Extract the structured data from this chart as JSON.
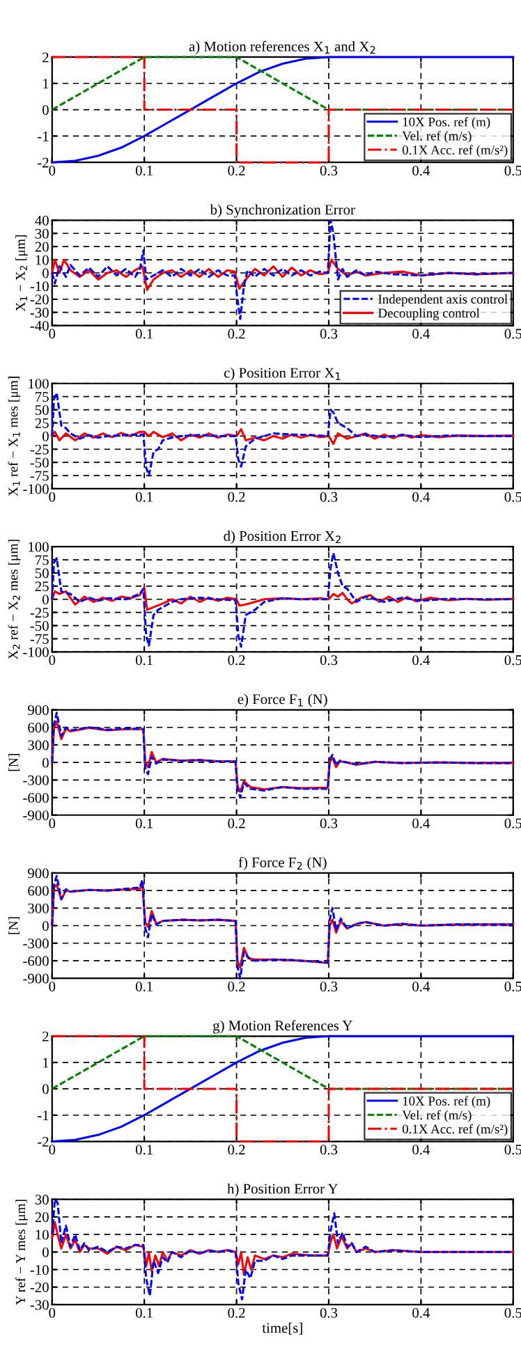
{
  "chart_data": [
    {
      "type": "line",
      "title": "a) Motion references X$_{1}$ and X$_{2}$",
      "xlim": [
        0,
        0.5
      ],
      "xticks": [
        0,
        0.1,
        0.2,
        0.3,
        0.4,
        0.5
      ],
      "ylim": [
        -2,
        2
      ],
      "yticks": [
        -2,
        -1,
        0,
        1,
        2
      ],
      "grid": true,
      "legend": "bottom right",
      "series": [
        {
          "name": "10X Pos. ref (m)",
          "color": "#0000ff",
          "line_style": "solid",
          "x": [
            0,
            0.025,
            0.05,
            0.075,
            0.1,
            0.125,
            0.15,
            0.175,
            0.2,
            0.225,
            0.25,
            0.275,
            0.3,
            0.5
          ],
          "values": [
            -2,
            -1.94,
            -1.75,
            -1.44,
            -1,
            -0.5,
            0,
            0.5,
            1,
            1.44,
            1.75,
            1.94,
            2,
            2
          ]
        },
        {
          "name": "Vel. ref (m/s)",
          "color": "#008000",
          "line_style": "dashed",
          "x": [
            0,
            0.1,
            0.2,
            0.3,
            0.5
          ],
          "values": [
            0,
            2,
            2,
            0,
            0
          ]
        },
        {
          "name": "0.1X Acc. ref (m/s²)",
          "color": "#ff0000",
          "line_style": "dotted",
          "x": [
            0,
            0.1,
            0.1,
            0.2,
            0.2,
            0.3,
            0.3,
            0.5
          ],
          "values": [
            2,
            2,
            0,
            0,
            -2,
            -2,
            0,
            0
          ]
        }
      ]
    },
    {
      "type": "line",
      "title": "b) Synchronization Error",
      "ylabel": "X$_{1}$ − X$_{2}$ [μm]",
      "xlim": [
        0,
        0.5
      ],
      "xticks": [
        0,
        0.1,
        0.2,
        0.3,
        0.4,
        0.5
      ],
      "ylim": [
        -40,
        40
      ],
      "yticks": [
        -40,
        -30,
        -20,
        -10,
        0,
        10,
        20,
        30,
        40
      ],
      "grid": true,
      "legend": "bottom right",
      "series": [
        {
          "name": "Independent axis control",
          "color": "#0000ff",
          "line_style": "dashed",
          "x": [
            0,
            0.003,
            0.008,
            0.015,
            0.02,
            0.03,
            0.04,
            0.05,
            0.06,
            0.07,
            0.08,
            0.09,
            0.095,
            0.099,
            0.102,
            0.11,
            0.12,
            0.13,
            0.14,
            0.15,
            0.16,
            0.17,
            0.18,
            0.19,
            0.198,
            0.201,
            0.204,
            0.208,
            0.212,
            0.22,
            0.23,
            0.24,
            0.25,
            0.26,
            0.27,
            0.28,
            0.29,
            0.299,
            0.302,
            0.305,
            0.31,
            0.315,
            0.32,
            0.33,
            0.34,
            0.35,
            0.37,
            0.4,
            0.43,
            0.46,
            0.5
          ],
          "values": [
            0,
            -8,
            5,
            -3,
            6,
            -2,
            4,
            -3,
            5,
            -2,
            3,
            -3,
            2,
            17,
            -5,
            -2,
            2,
            -3,
            3,
            -2,
            3,
            -3,
            2,
            -2,
            -2,
            -20,
            -35,
            -10,
            2,
            -3,
            3,
            -2,
            3,
            -2,
            2,
            -2,
            1,
            0,
            40,
            30,
            -5,
            3,
            -3,
            2,
            -2,
            1,
            -1,
            -2,
            0,
            -1,
            0
          ]
        },
        {
          "name": "Decoupling control",
          "color": "#ff0000",
          "line_style": "solid",
          "x": [
            0,
            0.003,
            0.008,
            0.013,
            0.02,
            0.03,
            0.04,
            0.05,
            0.06,
            0.07,
            0.08,
            0.09,
            0.098,
            0.103,
            0.11,
            0.12,
            0.13,
            0.14,
            0.15,
            0.16,
            0.17,
            0.18,
            0.19,
            0.198,
            0.203,
            0.21,
            0.22,
            0.23,
            0.24,
            0.25,
            0.26,
            0.27,
            0.28,
            0.29,
            0.299,
            0.303,
            0.31,
            0.32,
            0.33,
            0.34,
            0.36,
            0.38,
            0.4,
            0.43,
            0.46,
            0.5
          ],
          "values": [
            0,
            10,
            0,
            10,
            2,
            -3,
            2,
            -5,
            0,
            2,
            -3,
            2,
            5,
            -13,
            -5,
            0,
            2,
            -3,
            2,
            -3,
            3,
            -3,
            2,
            1,
            -12,
            -5,
            3,
            -2,
            5,
            -3,
            4,
            -2,
            2,
            -1,
            0,
            10,
            3,
            -2,
            1,
            -2,
            0,
            1,
            -2,
            0,
            -1,
            0
          ]
        }
      ]
    },
    {
      "type": "line",
      "title": "c) Position Error X$_{1}$",
      "ylabel": "X$_{1}$ ref − X$_{1}$ mes [μm]",
      "xlim": [
        0,
        0.5
      ],
      "xticks": [
        0,
        0.1,
        0.2,
        0.3,
        0.4,
        0.5
      ],
      "ylim": [
        -100,
        100
      ],
      "yticks": [
        -100,
        -75,
        -50,
        -25,
        0,
        25,
        50,
        75,
        100
      ],
      "grid": true,
      "series": [
        {
          "color": "#0000ff",
          "line_style": "dashed",
          "x": [
            0,
            0.002,
            0.005,
            0.01,
            0.015,
            0.02,
            0.03,
            0.04,
            0.05,
            0.06,
            0.08,
            0.099,
            0.102,
            0.105,
            0.11,
            0.115,
            0.12,
            0.13,
            0.14,
            0.16,
            0.18,
            0.199,
            0.202,
            0.205,
            0.21,
            0.215,
            0.22,
            0.24,
            0.26,
            0.28,
            0.299,
            0.302,
            0.305,
            0.31,
            0.32,
            0.33,
            0.34,
            0.36,
            0.38,
            0.4,
            0.43,
            0.46,
            0.5
          ],
          "values": [
            0,
            70,
            82,
            20,
            15,
            5,
            -5,
            2,
            -3,
            0,
            2,
            3,
            -60,
            -75,
            -30,
            -25,
            -8,
            -3,
            0,
            2,
            0,
            0,
            -45,
            -58,
            -20,
            -12,
            -5,
            5,
            3,
            2,
            0,
            50,
            45,
            25,
            15,
            0,
            3,
            -2,
            2,
            -2,
            1,
            0,
            0
          ]
        },
        {
          "color": "#ff0000",
          "line_style": "solid",
          "x": [
            0,
            0.003,
            0.008,
            0.015,
            0.025,
            0.035,
            0.045,
            0.055,
            0.065,
            0.075,
            0.085,
            0.095,
            0.1,
            0.105,
            0.11,
            0.12,
            0.13,
            0.14,
            0.15,
            0.16,
            0.17,
            0.18,
            0.19,
            0.2,
            0.205,
            0.21,
            0.22,
            0.23,
            0.24,
            0.25,
            0.26,
            0.27,
            0.28,
            0.29,
            0.3,
            0.305,
            0.31,
            0.32,
            0.33,
            0.34,
            0.35,
            0.36,
            0.37,
            0.38,
            0.39,
            0.4,
            0.42,
            0.44,
            0.47,
            0.5
          ],
          "values": [
            0,
            8,
            -8,
            5,
            -8,
            5,
            -3,
            5,
            -2,
            6,
            0,
            8,
            8,
            0,
            8,
            -2,
            5,
            -8,
            3,
            -3,
            5,
            -3,
            3,
            0,
            13,
            -8,
            -3,
            -8,
            0,
            -5,
            3,
            -3,
            2,
            -2,
            0,
            -15,
            5,
            -5,
            0,
            5,
            -5,
            3,
            -4,
            3,
            -3,
            2,
            -2,
            1,
            0,
            1
          ]
        }
      ]
    },
    {
      "type": "line",
      "title": "d) Position Error X$_{2}$",
      "ylabel": "X$_{2}$ ref − X$_{2}$ mes [μm]",
      "xlim": [
        0,
        0.5
      ],
      "xticks": [
        0,
        0.1,
        0.2,
        0.3,
        0.4,
        0.5
      ],
      "ylim": [
        -100,
        100
      ],
      "yticks": [
        -100,
        -75,
        -50,
        -25,
        0,
        25,
        50,
        75,
        100
      ],
      "grid": true,
      "series": [
        {
          "color": "#0000ff",
          "line_style": "dashed",
          "x": [
            0,
            0.002,
            0.005,
            0.01,
            0.02,
            0.03,
            0.04,
            0.05,
            0.06,
            0.08,
            0.095,
            0.099,
            0.102,
            0.105,
            0.11,
            0.115,
            0.12,
            0.13,
            0.14,
            0.16,
            0.18,
            0.199,
            0.202,
            0.205,
            0.21,
            0.22,
            0.23,
            0.25,
            0.27,
            0.299,
            0.302,
            0.305,
            0.31,
            0.315,
            0.32,
            0.33,
            0.34,
            0.36,
            0.38,
            0.4,
            0.43,
            0.46,
            0.5
          ],
          "values": [
            0,
            70,
            78,
            15,
            10,
            -5,
            3,
            -3,
            2,
            0,
            10,
            20,
            -70,
            -88,
            -30,
            -20,
            -15,
            -5,
            0,
            3,
            0,
            -2,
            -70,
            -90,
            -30,
            -20,
            -5,
            2,
            0,
            0,
            60,
            88,
            50,
            25,
            20,
            -5,
            5,
            -5,
            3,
            -3,
            1,
            0,
            0
          ]
        },
        {
          "color": "#ff0000",
          "line_style": "solid",
          "x": [
            0,
            0.003,
            0.008,
            0.015,
            0.025,
            0.035,
            0.045,
            0.055,
            0.065,
            0.075,
            0.085,
            0.095,
            0.1,
            0.103,
            0.11,
            0.12,
            0.13,
            0.14,
            0.15,
            0.16,
            0.17,
            0.18,
            0.19,
            0.2,
            0.203,
            0.21,
            0.22,
            0.23,
            0.25,
            0.27,
            0.29,
            0.3,
            0.305,
            0.31,
            0.315,
            0.32,
            0.325,
            0.335,
            0.345,
            0.355,
            0.365,
            0.375,
            0.385,
            0.395,
            0.41,
            0.43,
            0.45,
            0.47,
            0.5
          ],
          "values": [
            0,
            15,
            10,
            15,
            -10,
            5,
            -5,
            3,
            -3,
            5,
            2,
            8,
            22,
            -20,
            -15,
            -8,
            0,
            -8,
            5,
            -5,
            3,
            -3,
            3,
            0,
            -12,
            -10,
            -5,
            0,
            2,
            0,
            2,
            0,
            10,
            5,
            12,
            0,
            -8,
            3,
            8,
            -5,
            5,
            -5,
            4,
            -4,
            3,
            -2,
            1,
            -1,
            1
          ]
        }
      ]
    },
    {
      "type": "line",
      "title": "e) Force F$_{1}$ (N)",
      "ylabel": "[N]",
      "xlim": [
        0,
        0.5
      ],
      "xticks": [
        0,
        0.1,
        0.2,
        0.3,
        0.4,
        0.5
      ],
      "ylim": [
        -900,
        900
      ],
      "yticks": [
        -900,
        -600,
        -300,
        0,
        300,
        600,
        900
      ],
      "grid": true,
      "series": [
        {
          "color": "#0000ff",
          "line_style": "dashed",
          "x": [
            0,
            0.002,
            0.005,
            0.01,
            0.015,
            0.02,
            0.04,
            0.06,
            0.08,
            0.099,
            0.101,
            0.104,
            0.108,
            0.113,
            0.12,
            0.14,
            0.16,
            0.18,
            0.199,
            0.201,
            0.204,
            0.208,
            0.215,
            0.23,
            0.25,
            0.27,
            0.299,
            0.301,
            0.304,
            0.308,
            0.312,
            0.32,
            0.33,
            0.35,
            0.38,
            0.42,
            0.46,
            0.5
          ],
          "values": [
            0,
            650,
            850,
            450,
            600,
            550,
            600,
            560,
            580,
            570,
            -100,
            -200,
            100,
            -20,
            50,
            30,
            40,
            20,
            20,
            -450,
            -600,
            -350,
            -450,
            -480,
            -420,
            -450,
            -450,
            50,
            130,
            -50,
            30,
            0,
            -30,
            10,
            -10,
            0,
            -10,
            -10
          ]
        },
        {
          "color": "#ff0000",
          "line_style": "solid",
          "x": [
            0,
            0.002,
            0.005,
            0.01,
            0.015,
            0.02,
            0.04,
            0.06,
            0.08,
            0.099,
            0.101,
            0.104,
            0.108,
            0.113,
            0.12,
            0.14,
            0.16,
            0.18,
            0.199,
            0.201,
            0.204,
            0.208,
            0.215,
            0.23,
            0.25,
            0.27,
            0.299,
            0.301,
            0.304,
            0.308,
            0.312,
            0.32,
            0.33,
            0.35,
            0.38,
            0.42,
            0.46,
            0.5
          ],
          "values": [
            0,
            600,
            700,
            400,
            580,
            530,
            590,
            550,
            570,
            570,
            0,
            -80,
            180,
            0,
            60,
            30,
            40,
            20,
            20,
            -400,
            -500,
            -320,
            -420,
            -460,
            -420,
            -440,
            -430,
            0,
            80,
            -80,
            20,
            0,
            -40,
            10,
            -10,
            0,
            -10,
            -10
          ]
        }
      ]
    },
    {
      "type": "line",
      "title": "f) Force F$_{2}$ (N)",
      "ylabel": "[N]",
      "xlim": [
        0,
        0.5
      ],
      "xticks": [
        0,
        0.1,
        0.2,
        0.3,
        0.4,
        0.5
      ],
      "ylim": [
        -900,
        900
      ],
      "yticks": [
        -900,
        -600,
        -300,
        0,
        300,
        600,
        900
      ],
      "grid": true,
      "series": [
        {
          "color": "#0000ff",
          "line_style": "dashed",
          "x": [
            0,
            0.002,
            0.005,
            0.01,
            0.015,
            0.02,
            0.04,
            0.06,
            0.08,
            0.095,
            0.098,
            0.101,
            0.104,
            0.108,
            0.113,
            0.12,
            0.14,
            0.16,
            0.18,
            0.199,
            0.201,
            0.204,
            0.208,
            0.213,
            0.22,
            0.24,
            0.26,
            0.28,
            0.299,
            0.301,
            0.304,
            0.308,
            0.313,
            0.32,
            0.33,
            0.34,
            0.36,
            0.38,
            0.4,
            0.44,
            0.5
          ],
          "values": [
            0,
            700,
            850,
            450,
            620,
            580,
            610,
            600,
            630,
            650,
            780,
            -50,
            -200,
            200,
            20,
            80,
            100,
            90,
            100,
            80,
            -700,
            -900,
            -450,
            -550,
            -600,
            -580,
            -590,
            -610,
            -630,
            100,
            300,
            -80,
            120,
            -50,
            30,
            60,
            0,
            30,
            0,
            20,
            20
          ]
        },
        {
          "color": "#ff0000",
          "line_style": "solid",
          "x": [
            0,
            0.002,
            0.005,
            0.01,
            0.015,
            0.02,
            0.04,
            0.06,
            0.08,
            0.095,
            0.098,
            0.101,
            0.104,
            0.108,
            0.113,
            0.12,
            0.14,
            0.16,
            0.18,
            0.199,
            0.201,
            0.204,
            0.208,
            0.213,
            0.22,
            0.24,
            0.26,
            0.28,
            0.299,
            0.301,
            0.304,
            0.308,
            0.313,
            0.32,
            0.33,
            0.34,
            0.36,
            0.38,
            0.4,
            0.44,
            0.5
          ],
          "values": [
            0,
            650,
            700,
            450,
            600,
            580,
            610,
            600,
            620,
            630,
            700,
            50,
            -20,
            250,
            30,
            80,
            100,
            90,
            100,
            80,
            -600,
            -720,
            -380,
            -560,
            -580,
            -580,
            -590,
            -610,
            -640,
            0,
            100,
            -120,
            80,
            -50,
            30,
            60,
            0,
            30,
            0,
            20,
            20
          ]
        }
      ]
    },
    {
      "type": "line",
      "title": "g) Motion References Y",
      "xlim": [
        0,
        0.5
      ],
      "xticks": [
        0,
        0.1,
        0.2,
        0.3,
        0.4,
        0.5
      ],
      "ylim": [
        -2,
        2
      ],
      "yticks": [
        -2,
        -1,
        0,
        1,
        2
      ],
      "grid": true,
      "legend": "bottom right",
      "series": [
        {
          "name": "10X Pos. ref (m)",
          "color": "#0000ff",
          "line_style": "solid",
          "x": [
            0,
            0.025,
            0.05,
            0.075,
            0.1,
            0.125,
            0.15,
            0.175,
            0.2,
            0.225,
            0.25,
            0.275,
            0.3,
            0.5
          ],
          "values": [
            -2,
            -1.94,
            -1.75,
            -1.44,
            -1,
            -0.5,
            0,
            0.5,
            1,
            1.44,
            1.75,
            1.94,
            2,
            2
          ]
        },
        {
          "name": "Vel. ref (m/s)",
          "color": "#008000",
          "line_style": "dashed",
          "x": [
            0,
            0.1,
            0.2,
            0.3,
            0.5
          ],
          "values": [
            0,
            2,
            2,
            0,
            0
          ]
        },
        {
          "name": "0.1X Acc. ref (m/s²)",
          "color": "#ff0000",
          "line_style": "dotted",
          "x": [
            0,
            0.1,
            0.1,
            0.2,
            0.2,
            0.3,
            0.3,
            0.5
          ],
          "values": [
            2,
            2,
            0,
            0,
            -2,
            -2,
            0,
            0
          ]
        }
      ]
    },
    {
      "type": "line",
      "title": "h) Position Error Y",
      "ylabel": "Y ref − Y mes [μm]",
      "xlabel": "time[s]",
      "xlim": [
        0,
        0.5
      ],
      "xticks": [
        0,
        0.1,
        0.2,
        0.3,
        0.4,
        0.5
      ],
      "ylim": [
        -30,
        30
      ],
      "yticks": [
        -30,
        -20,
        -10,
        0,
        10,
        20,
        30
      ],
      "grid": true,
      "series": [
        {
          "color": "#0000ff",
          "line_style": "dashed",
          "x": [
            0,
            0.003,
            0.006,
            0.01,
            0.015,
            0.02,
            0.025,
            0.03,
            0.035,
            0.04,
            0.05,
            0.06,
            0.07,
            0.08,
            0.09,
            0.099,
            0.102,
            0.106,
            0.11,
            0.115,
            0.12,
            0.125,
            0.13,
            0.14,
            0.15,
            0.16,
            0.17,
            0.18,
            0.19,
            0.199,
            0.202,
            0.206,
            0.21,
            0.215,
            0.22,
            0.23,
            0.24,
            0.25,
            0.26,
            0.28,
            0.299,
            0.302,
            0.306,
            0.31,
            0.315,
            0.32,
            0.325,
            0.33,
            0.34,
            0.35,
            0.37,
            0.4,
            0.5
          ],
          "values": [
            10,
            30,
            28,
            5,
            15,
            3,
            10,
            1,
            5,
            1,
            3,
            0,
            3,
            2,
            4,
            4,
            -15,
            -25,
            -5,
            -12,
            -3,
            -6,
            0,
            -3,
            1,
            -1,
            1,
            0,
            1,
            0,
            -18,
            -27,
            -10,
            -15,
            -5,
            -5,
            -2,
            -4,
            -2,
            -2,
            -2,
            12,
            22,
            5,
            11,
            3,
            5,
            0,
            3,
            0,
            1,
            0,
            0
          ]
        },
        {
          "color": "#ff0000",
          "line_style": "solid",
          "x": [
            0,
            0.003,
            0.006,
            0.01,
            0.015,
            0.02,
            0.025,
            0.03,
            0.035,
            0.04,
            0.05,
            0.06,
            0.07,
            0.08,
            0.09,
            0.099,
            0.102,
            0.105,
            0.108,
            0.112,
            0.116,
            0.12,
            0.125,
            0.13,
            0.14,
            0.15,
            0.16,
            0.17,
            0.18,
            0.19,
            0.199,
            0.202,
            0.205,
            0.208,
            0.212,
            0.216,
            0.22,
            0.23,
            0.24,
            0.25,
            0.26,
            0.28,
            0.299,
            0.302,
            0.305,
            0.309,
            0.314,
            0.32,
            0.325,
            0.33,
            0.34,
            0.35,
            0.37,
            0.4,
            0.5
          ],
          "values": [
            8,
            17,
            10,
            2,
            10,
            2,
            7,
            0,
            4,
            2,
            2,
            -1,
            3,
            1,
            4,
            3,
            -8,
            0,
            -11,
            -2,
            -8,
            0,
            -5,
            0,
            -2,
            1,
            -1,
            1,
            0,
            1,
            0,
            -7,
            0,
            -13,
            -3,
            -10,
            -2,
            -4,
            -2,
            -3,
            -1,
            -2,
            -2,
            6,
            10,
            2,
            9,
            2,
            5,
            0,
            2,
            0,
            1,
            0,
            0
          ]
        }
      ]
    }
  ]
}
